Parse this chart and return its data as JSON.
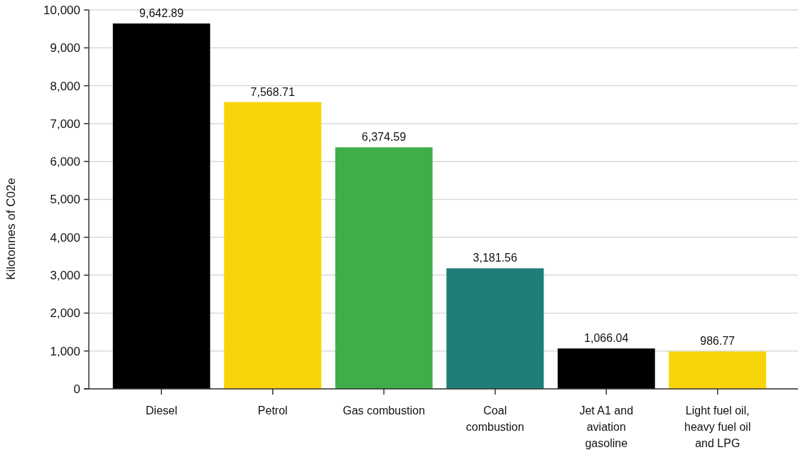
{
  "chart_data": {
    "type": "bar",
    "ylabel": "Kilotonnes of C02e",
    "categories": [
      "Diesel",
      "Petrol",
      "Gas combustion",
      "Coal\ncombustion",
      "Jet A1 and\naviation\ngasoline",
      "Light fuel oil,\nheavy fuel oil\nand LPG"
    ],
    "values": [
      9642.89,
      7568.71,
      6374.59,
      3181.56,
      1066.04,
      986.77
    ],
    "colors": [
      "#000000",
      "#f8d508",
      "#41ad4a",
      "#1f7f78",
      "#000000",
      "#f8d508"
    ],
    "ylim": [
      0,
      10000
    ],
    "yticks": [
      0,
      {
        "value": 1000,
        "label": "1,000"
      },
      {
        "value": 2000,
        "label": "2,000"
      },
      {
        "value": 3000,
        "label": "3,000"
      },
      {
        "value": 4000,
        "label": "4,000"
      },
      {
        "value": 5000,
        "label": "5,000"
      },
      {
        "value": 6000,
        "label": "6,000"
      },
      {
        "value": 7000,
        "label": "7,000"
      },
      {
        "value": 8000,
        "label": "8,000"
      },
      {
        "value": 9000,
        "label": "9,000"
      },
      {
        "value": 10000,
        "label": "10,000"
      }
    ],
    "value_labels": [
      "9,642.89",
      "7,568.71",
      "6,374.59",
      "3,181.56",
      "1,066.04",
      "986.77"
    ],
    "grid": "y"
  }
}
